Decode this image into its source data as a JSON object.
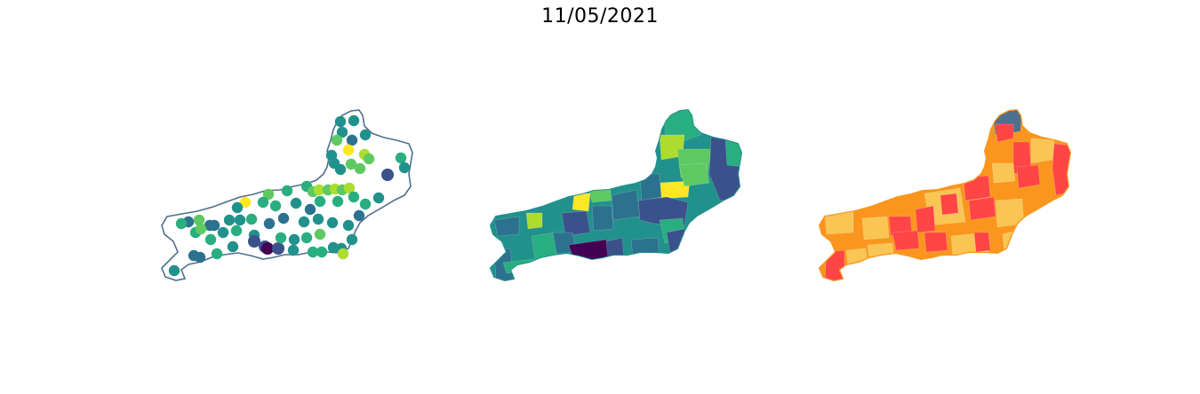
{
  "figure": {
    "title": "11/05/2021"
  },
  "colors": {
    "outline": "#4f6f8f",
    "viridis": [
      "#440154",
      "#3b518b",
      "#2c728e",
      "#21918c",
      "#28ae80",
      "#5ec962",
      "#addc30",
      "#fde725"
    ],
    "risk": [
      "#4f6f8f",
      "#ff4545",
      "#fa961e",
      "#f9c554"
    ]
  },
  "panels": [
    {
      "id": "points",
      "type": "point-map"
    },
    {
      "id": "viridis-choropleth",
      "type": "choropleth"
    },
    {
      "id": "risk-choropleth",
      "type": "choropleth"
    }
  ]
}
